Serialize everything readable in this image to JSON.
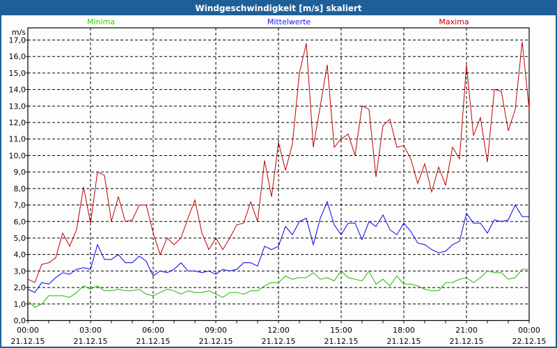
{
  "window": {
    "title": "Windgeschwindigkeit [m/s] skaliert"
  },
  "chart_data": {
    "type": "line",
    "title": "Windgeschwindigkeit [m/s] skaliert",
    "ylabel": "m/s",
    "xlabel": "",
    "ylim": [
      0,
      17
    ],
    "xlim_hours": [
      0,
      24
    ],
    "grid": true,
    "legend_placement": "top",
    "y_ticks": [
      "0,0",
      "1,0",
      "2,0",
      "3,0",
      "4,0",
      "5,0",
      "6,0",
      "7,0",
      "8,0",
      "9,0",
      "10,0",
      "11,0",
      "12,0",
      "13,0",
      "14,0",
      "15,0",
      "16,0",
      "17,0"
    ],
    "x_ticks": [
      {
        "time": "00:00",
        "date": "21.12.15"
      },
      {
        "time": "03:00",
        "date": "21.12.15"
      },
      {
        "time": "06:00",
        "date": "21.12.15"
      },
      {
        "time": "09:00",
        "date": "21.12.15"
      },
      {
        "time": "12:00",
        "date": "21.12.15"
      },
      {
        "time": "15:00",
        "date": "21.12.15"
      },
      {
        "time": "18:00",
        "date": "21.12.15"
      },
      {
        "time": "21:00",
        "date": "21.12.15"
      },
      {
        "time": "00:00",
        "date": "22.12.15"
      }
    ],
    "x_step_minutes": 20,
    "series": [
      {
        "name": "Minima",
        "color": "#1fb800",
        "label_color": "#33cc00",
        "values": [
          1.2,
          0.8,
          1.0,
          1.5,
          1.5,
          1.5,
          1.4,
          1.7,
          2.1,
          1.9,
          2.1,
          1.8,
          1.8,
          1.9,
          1.8,
          1.8,
          1.9,
          1.6,
          1.5,
          1.7,
          1.9,
          1.8,
          1.6,
          1.8,
          1.7,
          1.7,
          1.8,
          1.6,
          1.4,
          1.7,
          1.7,
          1.6,
          1.8,
          1.8,
          2.1,
          2.3,
          2.3,
          2.7,
          2.5,
          2.6,
          2.6,
          2.9,
          2.5,
          2.6,
          2.4,
          3.0,
          2.6,
          2.5,
          2.4,
          3.0,
          2.2,
          2.5,
          2.1,
          2.7,
          2.2,
          2.2,
          2.1,
          1.9,
          1.8,
          1.8,
          2.3,
          2.3,
          2.5,
          2.6,
          2.3,
          2.6,
          3.0,
          2.9,
          2.9,
          2.5,
          2.6,
          3.1,
          3.1
        ]
      },
      {
        "name": "Mittelwerte",
        "color": "#0000ee",
        "label_color": "#2020ee",
        "values": [
          1.9,
          1.7,
          2.3,
          2.2,
          2.6,
          2.9,
          2.8,
          3.1,
          3.2,
          3.1,
          4.6,
          3.7,
          3.7,
          4.0,
          3.5,
          3.5,
          3.9,
          3.6,
          2.7,
          3.0,
          2.9,
          3.1,
          3.5,
          3.0,
          3.0,
          2.9,
          3.0,
          2.8,
          3.1,
          3.0,
          3.1,
          3.5,
          3.5,
          3.3,
          4.5,
          4.3,
          4.5,
          5.7,
          5.2,
          6.0,
          6.2,
          4.6,
          6.2,
          7.2,
          5.8,
          5.2,
          5.9,
          5.9,
          4.9,
          6.0,
          5.7,
          6.4,
          5.5,
          5.2,
          5.9,
          5.4,
          4.7,
          4.6,
          4.3,
          4.1,
          4.2,
          4.6,
          4.8,
          6.5,
          5.9,
          5.9,
          5.3,
          6.1,
          6.0,
          6.1,
          7.0,
          6.3,
          6.3
        ]
      },
      {
        "name": "Maxima",
        "color": "#c00000",
        "label_color": "#c00000",
        "values": [
          2.5,
          2.3,
          3.4,
          3.5,
          3.8,
          5.3,
          4.5,
          5.5,
          8.1,
          5.9,
          9.0,
          8.8,
          6.0,
          7.5,
          6.0,
          6.1,
          7.0,
          7.0,
          5.3,
          4.0,
          5.0,
          4.6,
          5.0,
          6.2,
          7.3,
          5.3,
          4.3,
          5.0,
          4.3,
          5.0,
          5.8,
          5.9,
          7.2,
          6.0,
          9.7,
          7.5,
          10.8,
          9.1,
          10.7,
          15.0,
          16.8,
          10.5,
          13.0,
          15.5,
          10.5,
          11.0,
          11.3,
          10.0,
          13.0,
          12.8,
          8.7,
          11.8,
          12.2,
          10.5,
          10.6,
          9.8,
          8.3,
          9.5,
          7.8,
          9.3,
          8.2,
          10.5,
          9.8,
          15.5,
          11.2,
          12.3,
          9.6,
          14.0,
          13.9,
          11.5,
          12.8,
          16.9,
          12.8
        ]
      }
    ]
  }
}
